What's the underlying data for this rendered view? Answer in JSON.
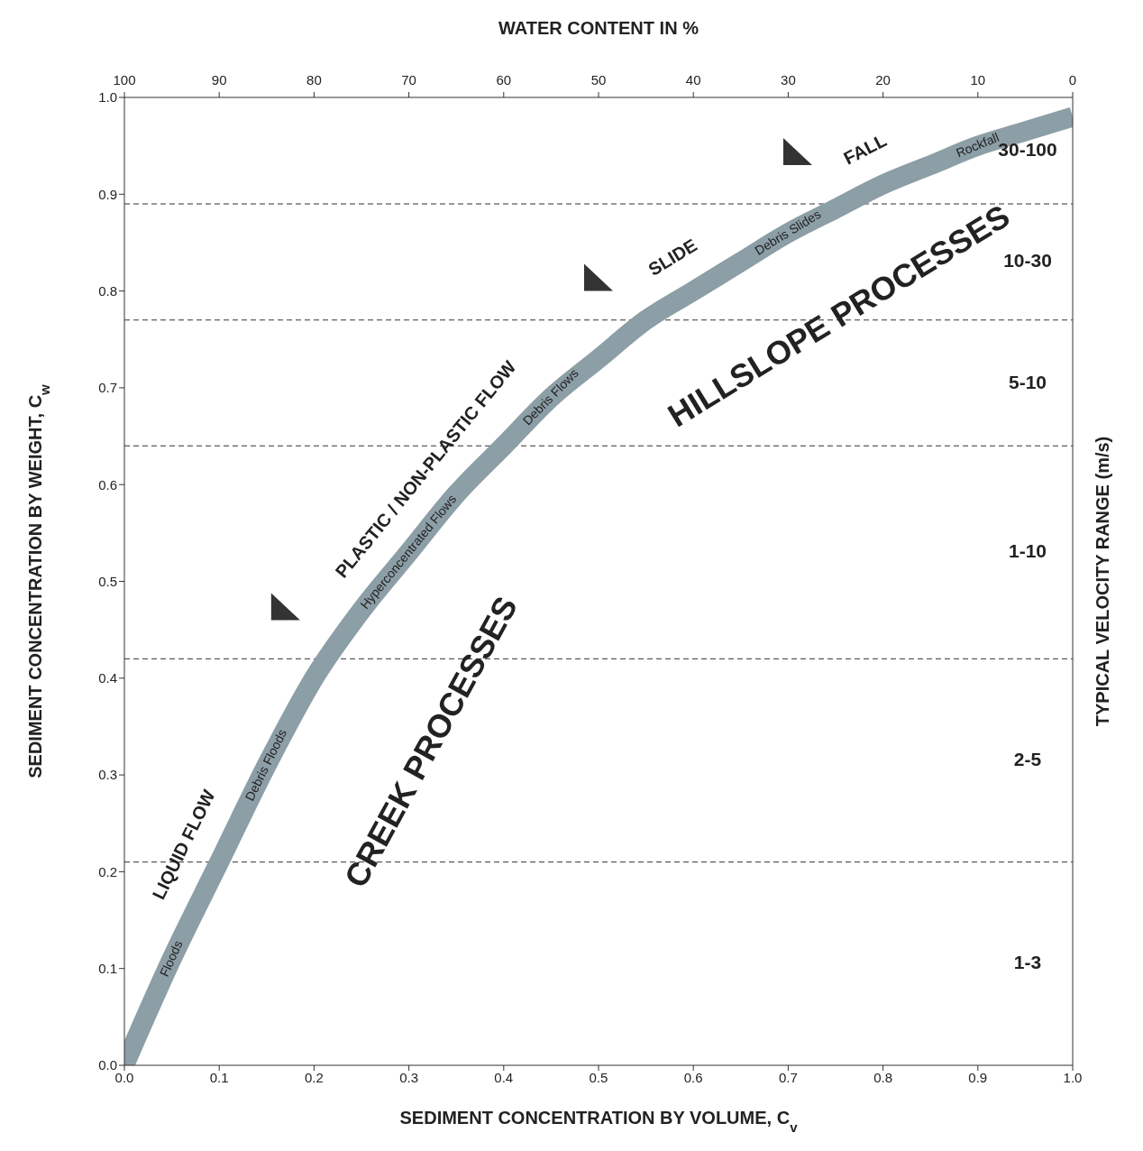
{
  "chart_data": {
    "type": "line",
    "xlabel": "SEDIMENT CONCENTRATION BY VOLUME, C$_{v}$",
    "ylabel": "SEDIMENT CONCENTRATION BY WEIGHT, C$_{w}$",
    "x2label": "WATER CONTENT IN %",
    "y2label": "TYPICAL VELOCITY RANGE (m/s)",
    "x": [
      0,
      0.05,
      0.1,
      0.15,
      0.2,
      0.25,
      0.3,
      0.35,
      0.4,
      0.45,
      0.5,
      0.55,
      0.6,
      0.65,
      0.7,
      0.75,
      0.8,
      0.85,
      0.9,
      0.95,
      1.0
    ],
    "series": [
      {
        "color": "#8c9ea6",
        "values": [
          0,
          0.11,
          0.21,
          0.31,
          0.4,
          0.47,
          0.53,
          0.59,
          0.64,
          0.69,
          0.73,
          0.77,
          0.8,
          0.83,
          0.86,
          0.885,
          0.91,
          0.93,
          0.95,
          0.965,
          0.98
        ]
      }
    ],
    "xlim": [
      0,
      1
    ],
    "xticks": [
      {
        "value": 0,
        "label": "0.0"
      },
      0.1,
      0.2,
      0.3,
      0.4,
      0.5,
      0.6,
      0.7,
      0.8,
      0.9,
      {
        "value": 1,
        "label": "1.0"
      }
    ],
    "ylim": [
      0,
      1
    ],
    "yticks": [
      {
        "value": 0,
        "label": "0.0"
      },
      0.1,
      0.2,
      0.3,
      0.4,
      0.5,
      0.6,
      0.7,
      0.8,
      0.9,
      {
        "value": 1,
        "label": "1.0"
      }
    ],
    "x2lim": [
      100,
      0
    ],
    "x2ticks": [
      100,
      90,
      80,
      70,
      60,
      50,
      40,
      30,
      20,
      10,
      0
    ],
    "ref_lines": [
      {
        "axis": "y",
        "value": 0.21,
        "line_style": "dashed"
      },
      {
        "axis": "y",
        "value": 0.42,
        "line_style": "dashed"
      },
      {
        "axis": "y",
        "value": 0.64,
        "line_style": "dashed"
      },
      {
        "axis": "y",
        "value": 0.77,
        "line_style": "dashed"
      },
      {
        "axis": "y",
        "value": 0.89,
        "line_style": "dashed"
      }
    ],
    "annotations": [
      {
        "text": "LIQUID FLOW",
        "x": 0.1,
        "y": 0.21
      },
      {
        "text": "PLASTIC / NON-PLASTIC FLOW",
        "x": 0.35,
        "y": 0.59
      },
      {
        "text": "SLIDE",
        "x": 0.6,
        "y": 0.8
      },
      {
        "text": "FALL",
        "x": 0.8,
        "y": 0.91
      },
      {
        "text": "Floods",
        "x": 0.05,
        "y": 0.11
      },
      {
        "text": "Debris Floods",
        "x": 0.15,
        "y": 0.31
      },
      {
        "text": "Hyperconcentrated Flows",
        "x": 0.3,
        "y": 0.53
      },
      {
        "text": "Debris Flows",
        "x": 0.45,
        "y": 0.69
      },
      {
        "text": "Debris Slides",
        "x": 0.7,
        "y": 0.86
      },
      {
        "text": "Rockfall",
        "x": 0.9,
        "y": 0.95
      },
      {
        "text": "CREEK PROCESSES",
        "x": 0.2,
        "y": 0.4
      },
      {
        "text": "HILLSLOPE PROCESSES",
        "x": 0.7,
        "y": 0.86
      },
      "1-3",
      "2-5",
      "1-10",
      "5-10",
      "10-30",
      "30-100"
    ],
    "grid": false,
    "marker": "none",
    "line_style": "solid"
  }
}
